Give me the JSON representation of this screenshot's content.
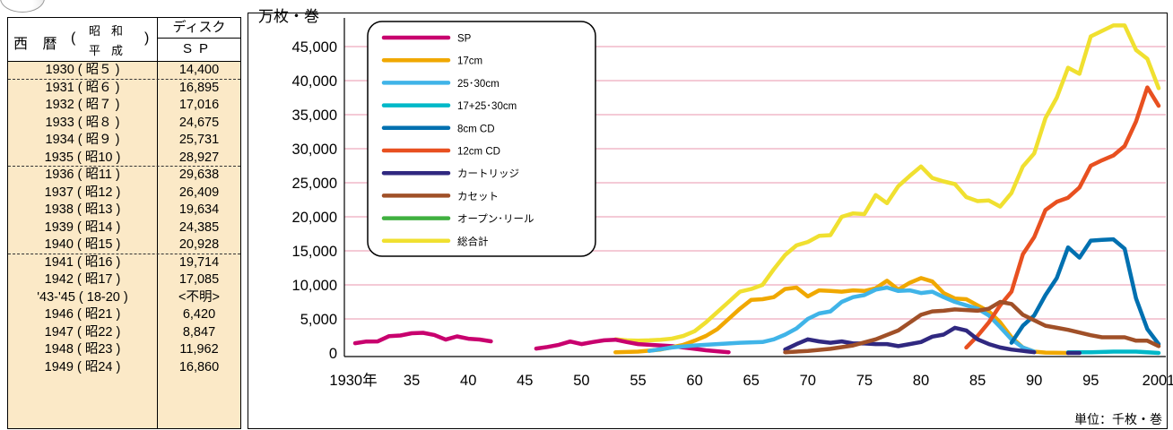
{
  "table": {
    "header": {
      "seireki": "西 暦",
      "paren_open": "(",
      "paren_close": ")",
      "era_top": "昭和",
      "era_bottom": "平成",
      "disc": "ディスク",
      "sp": "SP"
    },
    "rows": [
      {
        "year": "1930 ( 昭５ )",
        "value": "14,400",
        "dashed": true
      },
      {
        "year": "1931 ( 昭６ )",
        "value": "16,895"
      },
      {
        "year": "1932 ( 昭７ )",
        "value": "17,016"
      },
      {
        "year": "1933 ( 昭８ )",
        "value": "24,675"
      },
      {
        "year": "1934 ( 昭９ )",
        "value": "25,731"
      },
      {
        "year": "1935 ( 昭10 )",
        "value": "28,927",
        "dashed": true
      },
      {
        "year": "1936 ( 昭11 )",
        "value": "29,638"
      },
      {
        "year": "1937 ( 昭12 )",
        "value": "26,409"
      },
      {
        "year": "1938 ( 昭13 )",
        "value": "19,634"
      },
      {
        "year": "1939 ( 昭14 )",
        "value": "24,385"
      },
      {
        "year": "1940 ( 昭15 )",
        "value": "20,928",
        "dashed": true
      },
      {
        "year": "1941 ( 昭16 )",
        "value": "19,714"
      },
      {
        "year": "1942 ( 昭17 )",
        "value": "17,085"
      },
      {
        "year": "'43-'45 ( 18-20 )",
        "value": "<不明>"
      },
      {
        "year": "1946 ( 昭21 )",
        "value": "6,420"
      },
      {
        "year": "1947 ( 昭22 )",
        "value": "8,847"
      },
      {
        "year": "1948 ( 昭23 )",
        "value": "11,962"
      },
      {
        "year": "1949 ( 昭24 )",
        "value": "16,860"
      }
    ]
  },
  "chart_data": {
    "type": "line",
    "ylabel": "万枚・巻",
    "unit_note": "単位：千枚・巻",
    "xlim": [
      1930,
      2001
    ],
    "ylim": [
      0,
      48000
    ],
    "yticks": [
      0,
      5000,
      10000,
      15000,
      20000,
      25000,
      30000,
      35000,
      40000,
      45000
    ],
    "ytick_labels": [
      "0",
      "5,000",
      "10,000",
      "15,000",
      "20,000",
      "25,000",
      "30,000",
      "35,000",
      "40,000",
      "45,000"
    ],
    "xticks": [
      1930,
      1935,
      1940,
      1945,
      1950,
      1955,
      1960,
      1965,
      1970,
      1975,
      1980,
      1985,
      1990,
      1995,
      2001
    ],
    "xtick_labels": [
      "1930年",
      "35",
      "40",
      "45",
      "50",
      "55",
      "60",
      "65",
      "70",
      "75",
      "80",
      "85",
      "90",
      "95",
      "2001"
    ],
    "grid": "horizontal",
    "legend_position": "top-left",
    "series": [
      {
        "name": "SP",
        "color": "#c8006e",
        "points": [
          [
            1930,
            1440
          ],
          [
            1931,
            1690
          ],
          [
            1932,
            1700
          ],
          [
            1933,
            2470
          ],
          [
            1934,
            2570
          ],
          [
            1935,
            2890
          ],
          [
            1936,
            2960
          ],
          [
            1937,
            2640
          ],
          [
            1938,
            1960
          ],
          [
            1939,
            2440
          ],
          [
            1940,
            2090
          ],
          [
            1941,
            1970
          ],
          [
            1942,
            1710
          ],
          [
            1946,
            640
          ],
          [
            1947,
            880
          ],
          [
            1948,
            1200
          ],
          [
            1949,
            1690
          ],
          [
            1950,
            1300
          ],
          [
            1951,
            1600
          ],
          [
            1952,
            1850
          ],
          [
            1953,
            1950
          ],
          [
            1954,
            1600
          ],
          [
            1955,
            1300
          ],
          [
            1956,
            1200
          ],
          [
            1957,
            1100
          ],
          [
            1958,
            1000
          ],
          [
            1959,
            800
          ],
          [
            1960,
            600
          ],
          [
            1961,
            400
          ],
          [
            1962,
            250
          ],
          [
            1963,
            100
          ]
        ]
      },
      {
        "name": "17cm",
        "color": "#f0a800",
        "points": [
          [
            1953,
            100
          ],
          [
            1955,
            200
          ],
          [
            1957,
            500
          ],
          [
            1959,
            1200
          ],
          [
            1960,
            1800
          ],
          [
            1961,
            2500
          ],
          [
            1962,
            3500
          ],
          [
            1963,
            5000
          ],
          [
            1964,
            6500
          ],
          [
            1965,
            7800
          ],
          [
            1966,
            7900
          ],
          [
            1967,
            8200
          ],
          [
            1968,
            9400
          ],
          [
            1969,
            9600
          ],
          [
            1970,
            8300
          ],
          [
            1971,
            9200
          ],
          [
            1972,
            9100
          ],
          [
            1973,
            9000
          ],
          [
            1974,
            9200
          ],
          [
            1975,
            9100
          ],
          [
            1976,
            9500
          ],
          [
            1977,
            10600
          ],
          [
            1978,
            9300
          ],
          [
            1979,
            10300
          ],
          [
            1980,
            11000
          ],
          [
            1981,
            10500
          ],
          [
            1982,
            8800
          ],
          [
            1983,
            8000
          ],
          [
            1984,
            7900
          ],
          [
            1985,
            7000
          ],
          [
            1986,
            6100
          ],
          [
            1987,
            4500
          ],
          [
            1988,
            2300
          ],
          [
            1989,
            800
          ],
          [
            1990,
            200
          ],
          [
            1991,
            50
          ],
          [
            1993,
            0
          ]
        ]
      },
      {
        "name": "25･30cm",
        "color": "#40b4e8",
        "points": [
          [
            1953,
            0
          ],
          [
            1956,
            300
          ],
          [
            1958,
            800
          ],
          [
            1960,
            1100
          ],
          [
            1962,
            1300
          ],
          [
            1964,
            1500
          ],
          [
            1966,
            1600
          ],
          [
            1967,
            2000
          ],
          [
            1968,
            2700
          ],
          [
            1969,
            3600
          ],
          [
            1970,
            5000
          ],
          [
            1971,
            5800
          ],
          [
            1972,
            6100
          ],
          [
            1973,
            7500
          ],
          [
            1974,
            8200
          ],
          [
            1975,
            8500
          ],
          [
            1976,
            9300
          ],
          [
            1977,
            9600
          ],
          [
            1978,
            9100
          ],
          [
            1979,
            9200
          ],
          [
            1980,
            8800
          ],
          [
            1981,
            9000
          ],
          [
            1982,
            8200
          ],
          [
            1983,
            7500
          ],
          [
            1984,
            7000
          ],
          [
            1985,
            6500
          ],
          [
            1986,
            5500
          ],
          [
            1987,
            3800
          ],
          [
            1988,
            2000
          ],
          [
            1989,
            800
          ],
          [
            1990,
            200
          ]
        ]
      },
      {
        "name": "17+25･30cm",
        "color": "#00b8c8",
        "points": [
          [
            1993,
            100
          ],
          [
            1995,
            100
          ],
          [
            1997,
            200
          ],
          [
            1999,
            200
          ],
          [
            2001,
            0
          ]
        ]
      },
      {
        "name": "8cm CD",
        "color": "#0070b0",
        "points": [
          [
            1988,
            1500
          ],
          [
            1989,
            4000
          ],
          [
            1990,
            5500
          ],
          [
            1991,
            8500
          ],
          [
            1992,
            11000
          ],
          [
            1993,
            15500
          ],
          [
            1994,
            14000
          ],
          [
            1995,
            16500
          ],
          [
            1996,
            16600
          ],
          [
            1997,
            16700
          ],
          [
            1998,
            15300
          ],
          [
            1999,
            8000
          ],
          [
            2000,
            3500
          ],
          [
            2001,
            1300
          ]
        ]
      },
      {
        "name": "12cm CD",
        "color": "#e85020",
        "points": [
          [
            1984,
            800
          ],
          [
            1985,
            2500
          ],
          [
            1986,
            4500
          ],
          [
            1987,
            7000
          ],
          [
            1988,
            9000
          ],
          [
            1989,
            14500
          ],
          [
            1990,
            17000
          ],
          [
            1991,
            21000
          ],
          [
            1992,
            22200
          ],
          [
            1993,
            22800
          ],
          [
            1994,
            24300
          ],
          [
            1995,
            27500
          ],
          [
            1996,
            28300
          ],
          [
            1997,
            29000
          ],
          [
            1998,
            30400
          ],
          [
            1999,
            34000
          ],
          [
            2000,
            39000
          ],
          [
            2001,
            36300
          ]
        ]
      },
      {
        "name": "カートリッジ",
        "color": "#302880",
        "points": [
          [
            1968,
            500
          ],
          [
            1969,
            1300
          ],
          [
            1970,
            2000
          ],
          [
            1971,
            1700
          ],
          [
            1972,
            1500
          ],
          [
            1973,
            1700
          ],
          [
            1974,
            1400
          ],
          [
            1975,
            1400
          ],
          [
            1976,
            1300
          ],
          [
            1977,
            1300
          ],
          [
            1978,
            1000
          ],
          [
            1979,
            1300
          ],
          [
            1980,
            1600
          ],
          [
            1981,
            2400
          ],
          [
            1982,
            2700
          ],
          [
            1983,
            3700
          ],
          [
            1984,
            3300
          ],
          [
            1985,
            2000
          ],
          [
            1986,
            1300
          ],
          [
            1987,
            800
          ],
          [
            1988,
            500
          ],
          [
            1989,
            300
          ],
          [
            1990,
            100
          ],
          [
            1993,
            0
          ],
          [
            1994,
            0
          ]
        ]
      },
      {
        "name": "カセット",
        "color": "#a05028",
        "points": [
          [
            1968,
            100
          ],
          [
            1970,
            300
          ],
          [
            1972,
            600
          ],
          [
            1974,
            1100
          ],
          [
            1976,
            2000
          ],
          [
            1978,
            3300
          ],
          [
            1980,
            5600
          ],
          [
            1981,
            6100
          ],
          [
            1982,
            6200
          ],
          [
            1983,
            6400
          ],
          [
            1984,
            6300
          ],
          [
            1985,
            6200
          ],
          [
            1986,
            6500
          ],
          [
            1987,
            7500
          ],
          [
            1988,
            7200
          ],
          [
            1989,
            5600
          ],
          [
            1990,
            4800
          ],
          [
            1991,
            4000
          ],
          [
            1992,
            3700
          ],
          [
            1993,
            3400
          ],
          [
            1994,
            3000
          ],
          [
            1995,
            2600
          ],
          [
            1996,
            2300
          ],
          [
            1997,
            2300
          ],
          [
            1998,
            2300
          ],
          [
            1999,
            1800
          ],
          [
            2000,
            1800
          ],
          [
            2001,
            1000
          ]
        ]
      },
      {
        "name": "オープン･リール",
        "color": "#40b040",
        "points": [
          [
            1968,
            100
          ],
          [
            1972,
            200
          ],
          [
            1976,
            200
          ],
          [
            1980,
            150
          ]
        ]
      },
      {
        "name": "総合計",
        "color": "#f0e030",
        "points": [
          [
            1953,
            2000
          ],
          [
            1954,
            1850
          ],
          [
            1955,
            1800
          ],
          [
            1956,
            1850
          ],
          [
            1957,
            1950
          ],
          [
            1958,
            2100
          ],
          [
            1959,
            2500
          ],
          [
            1960,
            3200
          ],
          [
            1961,
            4500
          ],
          [
            1962,
            6000
          ],
          [
            1963,
            7500
          ],
          [
            1964,
            9000
          ],
          [
            1965,
            9400
          ],
          [
            1966,
            10000
          ],
          [
            1967,
            12300
          ],
          [
            1968,
            14400
          ],
          [
            1969,
            15800
          ],
          [
            1970,
            16300
          ],
          [
            1971,
            17200
          ],
          [
            1972,
            17300
          ],
          [
            1973,
            20000
          ],
          [
            1974,
            20500
          ],
          [
            1975,
            20400
          ],
          [
            1976,
            23200
          ],
          [
            1977,
            22000
          ],
          [
            1978,
            24500
          ],
          [
            1979,
            26000
          ],
          [
            1980,
            27400
          ],
          [
            1981,
            25700
          ],
          [
            1982,
            25200
          ],
          [
            1983,
            24800
          ],
          [
            1984,
            22900
          ],
          [
            1985,
            22300
          ],
          [
            1986,
            22400
          ],
          [
            1987,
            21500
          ],
          [
            1988,
            23500
          ],
          [
            1989,
            27400
          ],
          [
            1990,
            29300
          ],
          [
            1991,
            34500
          ],
          [
            1992,
            37500
          ],
          [
            1993,
            41900
          ],
          [
            1994,
            41000
          ],
          [
            1995,
            46500
          ],
          [
            1996,
            47300
          ],
          [
            1997,
            48100
          ],
          [
            1998,
            48100
          ],
          [
            1999,
            44500
          ],
          [
            2000,
            43200
          ],
          [
            2001,
            38900
          ]
        ]
      }
    ]
  }
}
